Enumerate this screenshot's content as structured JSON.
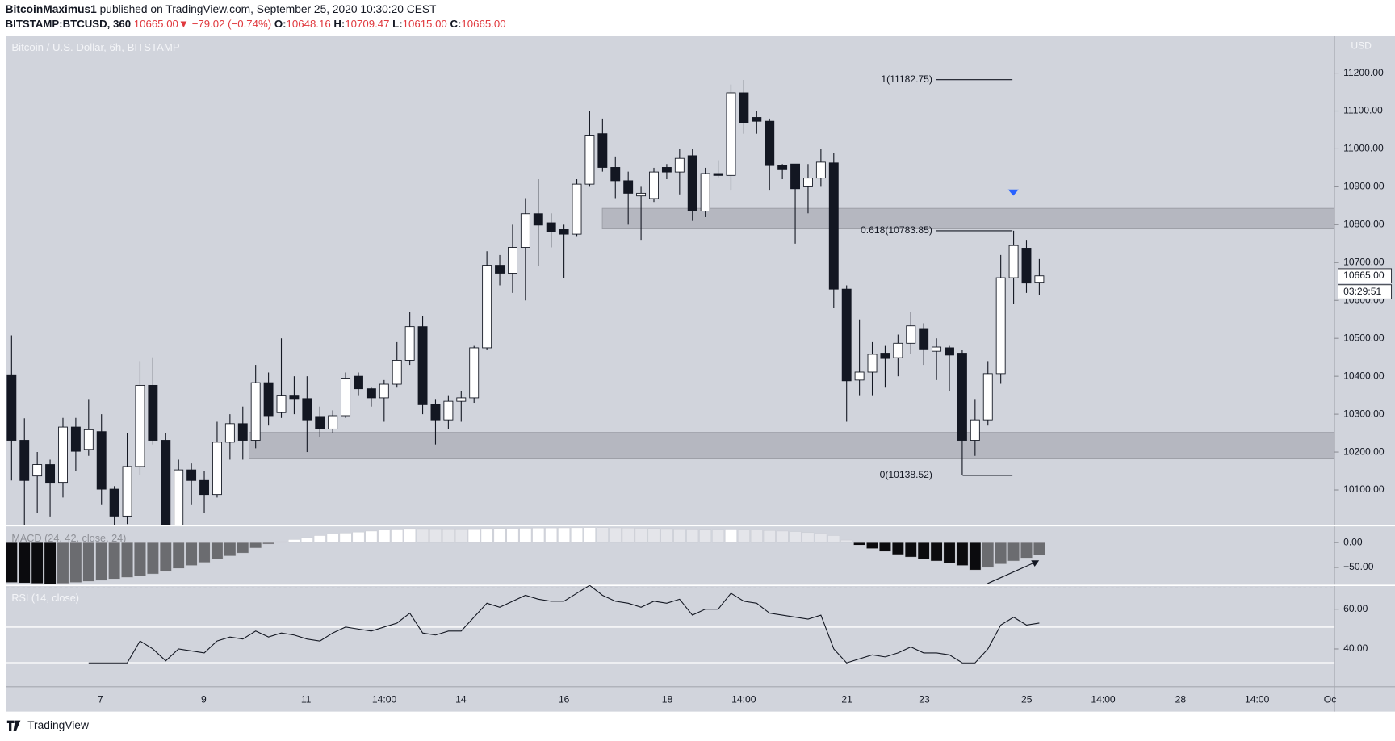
{
  "header": {
    "publisher": "BitcoinMaximus1",
    "published": "published on TradingView.com, September 25, 2020 10:30:20 CEST",
    "symbol": "BITSTAMP:BTCUSD, 360",
    "price": "10665.00",
    "arrow": "▼",
    "change": "−79.02 (−0.74%)",
    "o_key": "O:",
    "o": "10648.16",
    "h_key": "H:",
    "h": "10709.47",
    "l_key": "L:",
    "l": "10615.00",
    "c_key": "C:",
    "c": "10665.00"
  },
  "footer": {
    "brand": "TradingView"
  },
  "chart_data": {
    "type": "candlestick",
    "title": "Bitcoin / U.S. Dollar, 6h, BITSTAMP",
    "y_axis_label": "USD",
    "up_color": "#ffffff",
    "down_color": "#131722",
    "open": [
      10404,
      10231,
      10137,
      10167,
      10120,
      10266,
      10207,
      10254,
      10102,
      10031,
      10162,
      10376,
      10231,
      9990,
      10153,
      10125,
      10088,
      10226,
      10275,
      10231,
      10383,
      10304,
      10350,
      10341,
      10294,
      10261,
      10296,
      10400,
      10367,
      10343,
      10379,
      10442,
      10531,
      10325,
      10285,
      10334,
      10343,
      10475,
      10693,
      10672,
      10740,
      10829,
      10805,
      10787,
      10775,
      10907,
      11040,
      10951,
      10916,
      10876,
      10869,
      10951,
      10939,
      10982,
      10836,
      10935,
      10930,
      11148,
      11083,
      11073,
      10956,
      10960,
      10900,
      10923,
      10963,
      10630,
      10390,
      10411,
      10461,
      10449,
      10487,
      10526,
      10466,
      10475,
      10461,
      10231,
      10285,
      10407,
      10660,
      10738,
      10648.16
    ],
    "high": [
      10508,
      10289,
      10200,
      10180,
      10290,
      10290,
      10340,
      10300,
      10110,
      10250,
      10440,
      10450,
      10250,
      10180,
      10170,
      10150,
      10280,
      10300,
      10320,
      10430,
      10410,
      10500,
      10400,
      10400,
      10320,
      10310,
      10410,
      10410,
      10370,
      10390,
      10490,
      10570,
      10560,
      10340,
      10350,
      10360,
      10480,
      10730,
      10720,
      10800,
      10870,
      10920,
      10830,
      10800,
      10920,
      11100,
      11080,
      10980,
      10940,
      10900,
      10950,
      10960,
      11000,
      11000,
      10950,
      10970,
      11170,
      11182,
      11100,
      11080,
      10960,
      10960,
      10960,
      11000,
      10990,
      10640,
      10550,
      10490,
      10480,
      10510,
      10570,
      10540,
      10500,
      10480,
      10470,
      10340,
      10440,
      10720,
      10784,
      10760,
      10709.47
    ],
    "low": [
      10125,
      10008,
      10040,
      10030,
      10080,
      10150,
      10190,
      10060,
      9990,
      10010,
      10140,
      10220,
      9980,
      9980,
      10060,
      10040,
      10080,
      10180,
      10180,
      10210,
      10270,
      10290,
      10300,
      10200,
      10240,
      10250,
      10290,
      10350,
      10320,
      10280,
      10370,
      10430,
      10300,
      10220,
      10260,
      10280,
      10330,
      10470,
      10640,
      10620,
      10600,
      10690,
      10740,
      10660,
      10770,
      10900,
      10940,
      10870,
      10800,
      10760,
      10860,
      10920,
      10880,
      10810,
      10820,
      10925,
      10890,
      11040,
      11040,
      10890,
      10920,
      10750,
      10830,
      10900,
      10580,
      10280,
      10350,
      10350,
      10370,
      10400,
      10460,
      10430,
      10390,
      10360,
      10140,
      10190,
      10270,
      10380,
      10590,
      10620,
      10615
    ],
    "close": [
      10231,
      10125,
      10167,
      10120,
      10266,
      10202,
      10259,
      10102,
      10031,
      10162,
      10376,
      10231,
      9990,
      10153,
      10125,
      10088,
      10226,
      10275,
      10231,
      10383,
      10296,
      10350,
      10341,
      10285,
      10261,
      10296,
      10395,
      10367,
      10343,
      10379,
      10442,
      10531,
      10325,
      10285,
      10334,
      10343,
      10475,
      10693,
      10672,
      10740,
      10829,
      10799,
      10782,
      10775,
      10907,
      11036,
      10951,
      10916,
      10883,
      10883,
      10939,
      10939,
      10975,
      10836,
      10935,
      10930,
      11148,
      11069,
      11073,
      10956,
      10947,
      10895,
      10923,
      10965,
      10630,
      10388,
      10411,
      10458,
      10447,
      10487,
      10533,
      10472,
      10477,
      10456,
      10231,
      10285,
      10407,
      10660,
      10745,
      10646,
      10665
    ],
    "ylim": [
      10008,
      11299
    ],
    "yticks": [
      {
        "value": 10100,
        "label": "10100.00"
      },
      {
        "value": 10200,
        "label": "10200.00"
      },
      {
        "value": 10300,
        "label": "10300.00"
      },
      {
        "value": 10400,
        "label": "10400.00"
      },
      {
        "value": 10500,
        "label": "10500.00"
      },
      {
        "value": 10600,
        "label": "10600.00"
      },
      {
        "value": 10700,
        "label": "10700.00"
      },
      {
        "value": 10800,
        "label": "10800.00"
      },
      {
        "value": 10900,
        "label": "10900.00"
      },
      {
        "value": 11000,
        "label": "11000.00"
      },
      {
        "value": 11100,
        "label": "11100.00"
      },
      {
        "value": 11200,
        "label": "11200.00"
      }
    ],
    "last_price": {
      "value": 10665,
      "label": "10665.00"
    },
    "countdown": "03:29:51",
    "x_labels": [
      "7",
      "9",
      "11",
      "14:00",
      "14",
      "16",
      "18",
      "14:00",
      "21",
      "23",
      "25",
      "14:00",
      "28",
      "14:00",
      "Oc"
    ],
    "zones": [
      {
        "from": 10789,
        "to": 10843
      },
      {
        "from": 10182,
        "to": 10252
      }
    ],
    "zone_color": "#a9abb3",
    "fib": [
      {
        "label": "1(11182.75)",
        "price": 11182.75
      },
      {
        "label": "0.618(10783.85)",
        "price": 10783.85
      },
      {
        "label": "0(10138.52)",
        "price": 10138.52
      }
    ],
    "macd": {
      "title": "MACD (24, 42, close, 24)",
      "values": [
        -80,
        -81,
        -82,
        -83,
        -82,
        -80,
        -78,
        -76,
        -73,
        -70,
        -67,
        -63,
        -58,
        -52,
        -46,
        -40,
        -33,
        -27,
        -21,
        -11,
        -3,
        2,
        6,
        10,
        14,
        17,
        19,
        21,
        23,
        25,
        27,
        28,
        27.8,
        27.6,
        27.4,
        27.2,
        27.5,
        28,
        28.2,
        28.4,
        28.6,
        29,
        29.2,
        29.4,
        29.6,
        30,
        29.8,
        29.4,
        29,
        28.6,
        28.2,
        27.8,
        27.4,
        27,
        26.6,
        26.2,
        27,
        26,
        25,
        24,
        23,
        22,
        20,
        18,
        14,
        5,
        -5,
        -12,
        -18,
        -24,
        -29,
        -33,
        -37,
        -41,
        -46,
        -55,
        -50,
        -43,
        -37,
        -31,
        -25
      ],
      "colors": {
        "pos_up": "#ffffff",
        "pos_down": "#e4e5ea",
        "neg_down": "#0b0b0e",
        "neg_up": "#6b6c70"
      },
      "ylim": [
        -84,
        32
      ],
      "yticks": [
        {
          "value": 0,
          "label": "0.00"
        },
        {
          "value": -50,
          "label": "−50.00"
        }
      ]
    },
    "rsi": {
      "title": "RSI (14, close)",
      "color": "#131722",
      "values": [
        null,
        null,
        null,
        null,
        null,
        null,
        33,
        33,
        33,
        33,
        44,
        40,
        34,
        40,
        39,
        38,
        44,
        46,
        45,
        49,
        46,
        48,
        47,
        45,
        44,
        48,
        51,
        50,
        49,
        51,
        53,
        58,
        48,
        47,
        49,
        49,
        56,
        63,
        61,
        64,
        67,
        65,
        64,
        64,
        68,
        72,
        67,
        64,
        63,
        61,
        64,
        63,
        65,
        57,
        60,
        60,
        68,
        64,
        63,
        58,
        57,
        56,
        55,
        57,
        40,
        33,
        35,
        37,
        36,
        38,
        41,
        38,
        38,
        37,
        33,
        33,
        40,
        52,
        56,
        52,
        53
      ],
      "ylim": [
        21,
        72
      ],
      "yticks": [
        {
          "value": 60,
          "label": "60.00"
        },
        {
          "value": 40,
          "label": "40.00"
        }
      ]
    }
  }
}
